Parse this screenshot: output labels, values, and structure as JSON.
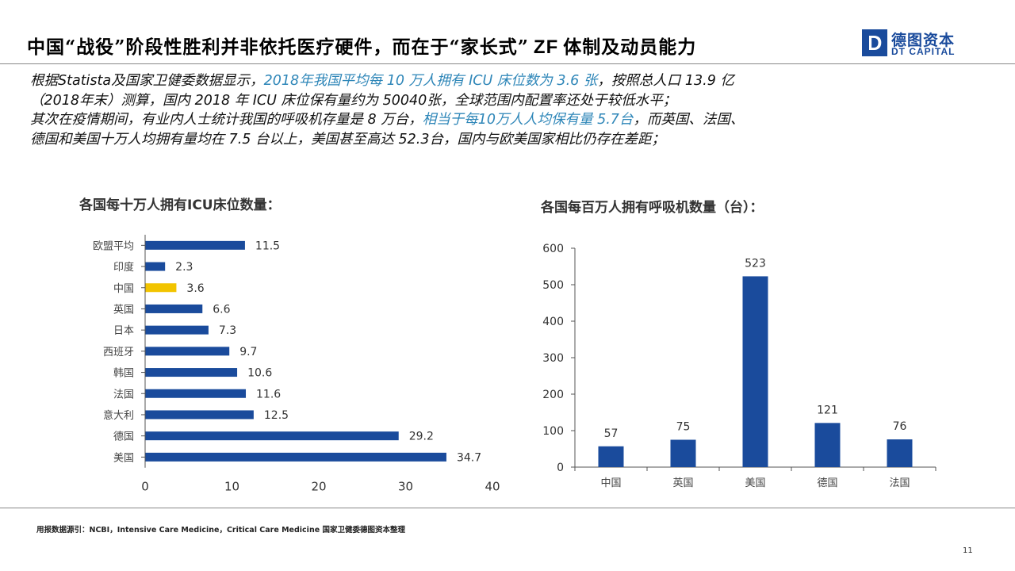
{
  "header": {
    "title_a": "中国“战役”阶段性胜利并非依托医疗硬件，而在于“家长式”",
    "title_b": "ZF",
    "title_c": "体制及动员能力",
    "logo_cn": "德图资本",
    "logo_en": "DT CAPITAL",
    "logo_mark": "D"
  },
  "body": {
    "l1a": "根据Statista及国家卫健委数据显示，",
    "l1b": "2018年我国平均每 10 万人拥有 ICU 床位数为 3.6 张",
    "l1c": "，按照总人口 13.9 亿",
    "l2": "（2018年末）测算，国内 2018 年 ICU 床位保有量约为 50040张，全球范围内配置率还处于较低水平；",
    "l3a": "其次在疫情期间，有业内人士统计我国的呼吸机存量是 8 万台，",
    "l3b": "相当于每10万人人均保有量 5.7台",
    "l3c": "，而英国、法国、",
    "l4": "德国和美国十万人均拥有量均在 7.5 台以上，美国甚至高达 52.3台，国内与欧美国家相比仍存在差距；"
  },
  "colors": {
    "bar": "#1a4b9c",
    "highlight": "#f2c400",
    "accent": "#2e86b8"
  },
  "chart_data": [
    {
      "type": "bar",
      "orientation": "horizontal",
      "title": "各国每十万人拥有ICU床位数量：",
      "categories": [
        "欧盟平均",
        "印度",
        "中国",
        "英国",
        "日本",
        "西班牙",
        "韩国",
        "法国",
        "意大利",
        "德国",
        "美国"
      ],
      "values": [
        11.5,
        2.3,
        3.6,
        6.6,
        7.3,
        9.7,
        10.6,
        11.6,
        12.5,
        29.2,
        34.7
      ],
      "highlight_category": "中国",
      "xlim": [
        0,
        40
      ],
      "xticks": [
        0,
        10,
        20,
        30,
        40
      ],
      "grid": false
    },
    {
      "type": "bar",
      "title": "各国每百万人拥有呼吸机数量（台）：",
      "categories": [
        "中国",
        "英国",
        "美国",
        "德国",
        "法国"
      ],
      "values": [
        57,
        75,
        523,
        121,
        76
      ],
      "ylim": [
        0,
        600
      ],
      "yticks": [
        0,
        100,
        200,
        300,
        400,
        500,
        600
      ],
      "grid": false
    }
  ],
  "footer": {
    "source": "用报数据源引：NCBI，Intensive Care Medicine，Critical Care Medicine 国家卫健委德图资本整理",
    "page": "11"
  }
}
